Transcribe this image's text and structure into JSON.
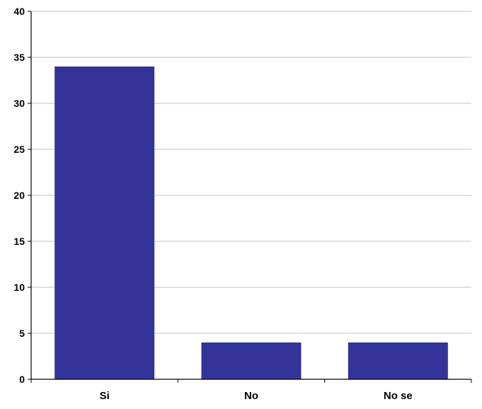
{
  "colors": {
    "bar": "#333399",
    "grid": "#c0c0c0",
    "axis": "#000000",
    "background": "#ffffff"
  },
  "chart_data": {
    "type": "bar",
    "title": "",
    "xlabel": "",
    "ylabel": "",
    "categories": [
      "Si",
      "No",
      "No se"
    ],
    "values": [
      34,
      4,
      4
    ],
    "ylim": [
      0,
      40
    ],
    "yticks": [
      0,
      5,
      10,
      15,
      20,
      25,
      30,
      35,
      40
    ],
    "grid": true,
    "legend": "none"
  }
}
